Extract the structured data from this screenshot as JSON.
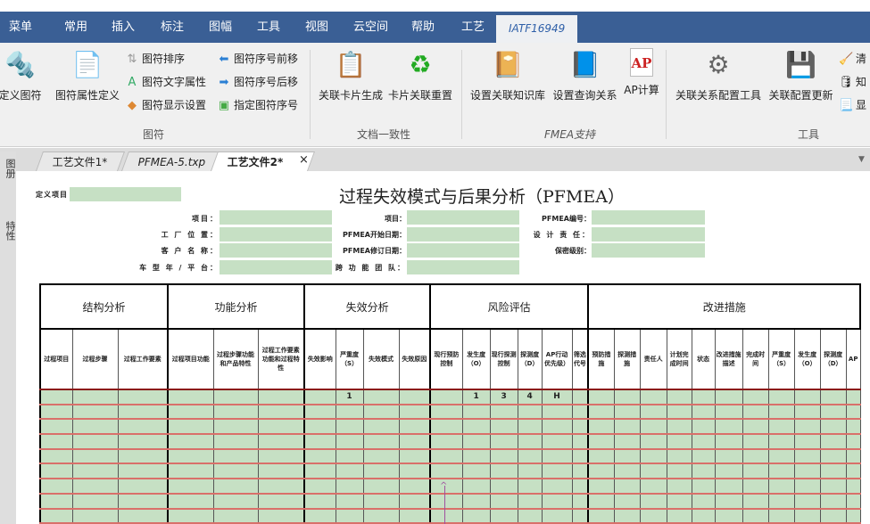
{
  "menu": [
    "菜单",
    "常用",
    "插入",
    "标注",
    "图幅",
    "工具",
    "视图",
    "云空间",
    "帮助",
    "工艺",
    "IATF16949"
  ],
  "ribbon": {
    "fuhao": {
      "define": "定义图符",
      "attr_define": "图符属性定义",
      "sort": "图符排序",
      "text_attr": "图符文字属性",
      "display": "图符显示设置",
      "move_fwd": "图符序号前移",
      "move_back": "图符序号后移",
      "assign": "指定图符序号",
      "label": "图符"
    },
    "doc": {
      "gen": "关联卡片生成",
      "reset": "卡片关联重置",
      "label": "文档一致性"
    },
    "fmea": {
      "kb": "设置关联知识库",
      "query": "设置查询关系",
      "ap": "AP计算",
      "label": "FMEA支持"
    },
    "tools": {
      "cfg": "关联关系配置工具",
      "update": "关联配置更新",
      "s1": "清",
      "s2": "知",
      "s3": "显",
      "label": "工具"
    }
  },
  "tabs": [
    {
      "label": "工艺文件1*"
    },
    {
      "label": "PFMEA-5.txp"
    },
    {
      "label": "工艺文件2*"
    }
  ],
  "sidebar": [
    "图册",
    "特性"
  ],
  "doc": {
    "title": "过程失效模式与后果分析（PFMEA）",
    "define_item": "定义项目",
    "left_fields": [
      "项目：",
      "工 厂 位 置：",
      "客 户 名 称：",
      "车 型 年 / 平 台："
    ],
    "mid_fields": [
      "项目：",
      "PFMEA开始日期：",
      "PFMEA修订日期：",
      "跨 功 能 团 队："
    ],
    "right_fields": [
      "PFMEA编号：",
      "设 计 责 任：",
      "保密级别："
    ]
  },
  "table": {
    "groups": [
      {
        "label": "结构分析",
        "span": 3
      },
      {
        "label": "功能分析",
        "span": 3
      },
      {
        "label": "失效分析",
        "span": 4
      },
      {
        "label": "风险评估",
        "span": 6
      },
      {
        "label": "改进措施",
        "span": 11
      }
    ],
    "headers": [
      "过程项目",
      "过程步骤",
      "过程工作要素",
      "过程项目功能",
      "过程步骤功能和产品特性",
      "过程工作要素功能和过程特性",
      "失效影响",
      "严重度（S）",
      "失效模式",
      "失效原因",
      "现行预防控制",
      "发生度（O）",
      "现行探测控制",
      "探测度（D）",
      "AP行动优先级）",
      "筛选代号",
      "预防措施",
      "探测措施",
      "责任人",
      "计划完成时间",
      "状态",
      "改进措施描述",
      "完成时间",
      "严重度（S）",
      "发生度（O）",
      "探测度（D）",
      "AP"
    ],
    "rows": [
      [
        "",
        "",
        "",
        "",
        "",
        "",
        "",
        "1",
        "",
        "",
        "",
        "1",
        "3",
        "4",
        "H",
        "",
        "",
        "",
        "",
        "",
        "",
        "",
        "",
        "",
        "",
        "",
        ""
      ],
      [],
      [],
      [],
      [],
      [],
      [],
      [],
      []
    ]
  },
  "colors": {
    "menubar": "#3a5f95",
    "cell_fill": "#c6e0c4",
    "row_line": "#d9706a"
  }
}
